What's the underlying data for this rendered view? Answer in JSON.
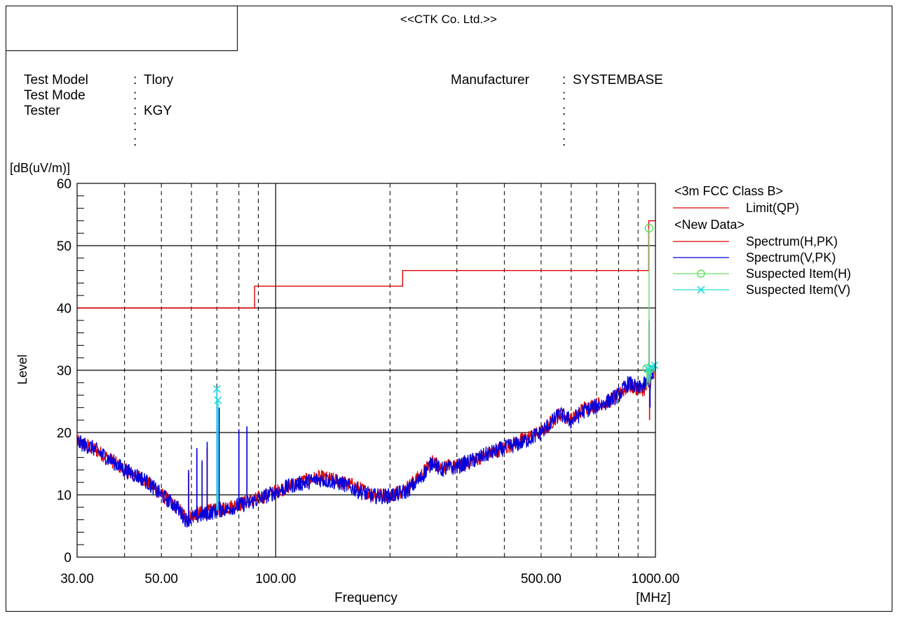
{
  "header": {
    "company": "<<CTK Co. Ltd.>>"
  },
  "info_left": [
    {
      "label": "Test Model",
      "value": "Tlory"
    },
    {
      "label": "Test Mode",
      "value": ""
    },
    {
      "label": "Tester",
      "value": "KGY"
    },
    {
      "label": "",
      "value": ""
    },
    {
      "label": "",
      "value": ""
    }
  ],
  "info_right": [
    {
      "label": "Manufacturer",
      "value": "SYSTEMBASE"
    },
    {
      "label": "",
      "value": ""
    },
    {
      "label": "",
      "value": ""
    },
    {
      "label": "",
      "value": ""
    },
    {
      "label": "",
      "value": ""
    }
  ],
  "chart_data": {
    "type": "line",
    "ylabel": "Level",
    "yunit_label": "[dB(uV/m)]",
    "xlabel": "Frequency",
    "xunit_label": "[MHz]",
    "xscale": "log",
    "xlim": [
      30,
      1000
    ],
    "ylim": [
      0,
      60
    ],
    "x_tick_labels": [
      {
        "x": 30,
        "label": "30.00"
      },
      {
        "x": 50,
        "label": "50.00"
      },
      {
        "x": 100,
        "label": "100.00"
      },
      {
        "x": 500,
        "label": "500.00"
      },
      {
        "x": 1000,
        "label": "1000.00"
      }
    ],
    "y_ticks": [
      0,
      10,
      20,
      30,
      40,
      50,
      60
    ],
    "grid": true,
    "legend_position": "right",
    "legend": [
      {
        "type": "header",
        "label": "<3m FCC Class B>"
      },
      {
        "type": "line",
        "label": "Limit(QP)",
        "color": "#e00000"
      },
      {
        "type": "header",
        "label": "<New Data>"
      },
      {
        "type": "line",
        "label": "Spectrum(H,PK)",
        "color": "#e00000"
      },
      {
        "type": "line",
        "label": "Spectrum(V,PK)",
        "color": "#0000e0"
      },
      {
        "type": "marker",
        "label": "Suspected Item(H)",
        "color": "#66dd66",
        "marker": "circle"
      },
      {
        "type": "marker",
        "label": "Suspected Item(V)",
        "color": "#22dddd",
        "marker": "x"
      }
    ],
    "limit_qp": {
      "name": "Limit(QP)",
      "color": "#e00000",
      "points": [
        [
          30,
          40
        ],
        [
          88,
          40
        ],
        [
          88,
          43.5
        ],
        [
          216,
          43.5
        ],
        [
          216,
          46
        ],
        [
          960,
          46
        ],
        [
          960,
          54
        ],
        [
          1000,
          54
        ]
      ]
    },
    "spectrum_h": {
      "name": "Spectrum(H,PK)",
      "color": "#e00000",
      "points": [
        [
          30,
          18.5
        ],
        [
          33,
          17.5
        ],
        [
          36,
          16
        ],
        [
          40,
          14
        ],
        [
          45,
          12.5
        ],
        [
          50,
          10
        ],
        [
          55,
          8
        ],
        [
          58,
          6.5
        ],
        [
          62,
          7
        ],
        [
          66,
          7.2
        ],
        [
          70,
          7.8
        ],
        [
          75,
          8
        ],
        [
          80,
          8.5
        ],
        [
          88,
          9.2
        ],
        [
          100,
          10.5
        ],
        [
          110,
          11.5
        ],
        [
          120,
          12.3
        ],
        [
          130,
          12.8
        ],
        [
          140,
          12.5
        ],
        [
          150,
          12
        ],
        [
          160,
          11.5
        ],
        [
          180,
          10
        ],
        [
          200,
          10
        ],
        [
          220,
          11
        ],
        [
          240,
          13
        ],
        [
          260,
          15.5
        ],
        [
          270,
          14.5
        ],
        [
          300,
          14.5
        ],
        [
          330,
          15.5
        ],
        [
          360,
          16.5
        ],
        [
          400,
          17.5
        ],
        [
          450,
          19
        ],
        [
          500,
          20
        ],
        [
          560,
          23
        ],
        [
          600,
          22
        ],
        [
          650,
          24
        ],
        [
          700,
          24.5
        ],
        [
          750,
          25
        ],
        [
          800,
          26
        ],
        [
          850,
          27.5
        ],
        [
          900,
          27
        ],
        [
          950,
          27
        ],
        [
          1000,
          29.5
        ]
      ],
      "spikes": [
        [
          59,
          13.5
        ],
        [
          62,
          16.5
        ],
        [
          64,
          15
        ],
        [
          66,
          17.5
        ],
        [
          70,
          21
        ],
        [
          80,
          20
        ],
        [
          84,
          20.5
        ],
        [
          965,
          22
        ]
      ]
    },
    "spectrum_v": {
      "name": "Spectrum(V,PK)",
      "color": "#0000e0",
      "points": [
        [
          30,
          18.5
        ],
        [
          33,
          17.5
        ],
        [
          36,
          16
        ],
        [
          40,
          14
        ],
        [
          45,
          12.5
        ],
        [
          50,
          10
        ],
        [
          55,
          8
        ],
        [
          58,
          6
        ],
        [
          62,
          6.5
        ],
        [
          66,
          7
        ],
        [
          70,
          7.5
        ],
        [
          75,
          7.8
        ],
        [
          80,
          8.3
        ],
        [
          88,
          9
        ],
        [
          100,
          10.5
        ],
        [
          110,
          11.5
        ],
        [
          120,
          12
        ],
        [
          130,
          12.5
        ],
        [
          140,
          12.2
        ],
        [
          150,
          11.8
        ],
        [
          160,
          11
        ],
        [
          180,
          9.8
        ],
        [
          200,
          9.8
        ],
        [
          220,
          10.5
        ],
        [
          240,
          12.5
        ],
        [
          260,
          15.5
        ],
        [
          270,
          14
        ],
        [
          300,
          14.5
        ],
        [
          330,
          15.5
        ],
        [
          360,
          16.5
        ],
        [
          400,
          17.5
        ],
        [
          450,
          18.5
        ],
        [
          500,
          20
        ],
        [
          560,
          23
        ],
        [
          600,
          21.8
        ],
        [
          650,
          23.5
        ],
        [
          700,
          24.2
        ],
        [
          750,
          25
        ],
        [
          800,
          26
        ],
        [
          850,
          28
        ],
        [
          900,
          27
        ],
        [
          950,
          28
        ],
        [
          1000,
          30
        ]
      ],
      "spikes": [
        [
          59,
          14
        ],
        [
          62,
          17.5
        ],
        [
          64,
          15.5
        ],
        [
          66,
          18.5
        ],
        [
          70,
          27
        ],
        [
          71,
          24
        ],
        [
          80,
          20.5
        ],
        [
          84,
          21
        ],
        [
          962,
          38
        ],
        [
          968,
          24
        ]
      ]
    },
    "suspected_h": {
      "name": "Suspected Item(H)",
      "color": "#66dd66",
      "marker": "circle",
      "points": [
        [
          950,
          30.3
        ],
        [
          962,
          52.8
        ],
        [
          968,
          30.2
        ]
      ]
    },
    "suspected_v": {
      "name": "Suspected Item(V)",
      "color": "#22dddd",
      "marker": "x",
      "points": [
        [
          70,
          27
        ],
        [
          70.5,
          25.2
        ],
        [
          955,
          30.2
        ],
        [
          975,
          30.5
        ],
        [
          995,
          30.8
        ]
      ]
    }
  }
}
